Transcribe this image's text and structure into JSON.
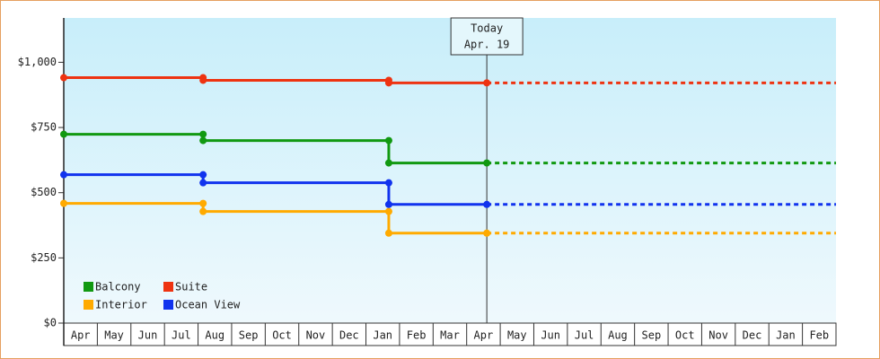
{
  "chart_data": {
    "type": "step-line",
    "xlim": [
      0,
      23
    ],
    "xticks": [
      {
        "value": 0.5,
        "label": "Apr"
      },
      {
        "value": 1.5,
        "label": "May"
      },
      {
        "value": 2.5,
        "label": "Jun"
      },
      {
        "value": 3.5,
        "label": "Jul"
      },
      {
        "value": 4.5,
        "label": "Aug"
      },
      {
        "value": 5.5,
        "label": "Sep"
      },
      {
        "value": 6.5,
        "label": "Oct"
      },
      {
        "value": 7.5,
        "label": "Nov"
      },
      {
        "value": 8.5,
        "label": "Dec"
      },
      {
        "value": 9.5,
        "label": "Jan"
      },
      {
        "value": 10.5,
        "label": "Feb"
      },
      {
        "value": 11.5,
        "label": "Mar"
      },
      {
        "value": 12.5,
        "label": "Apr"
      },
      {
        "value": 13.5,
        "label": "May"
      },
      {
        "value": 14.5,
        "label": "Jun"
      },
      {
        "value": 15.5,
        "label": "Jul"
      },
      {
        "value": 16.5,
        "label": "Aug"
      },
      {
        "value": 17.5,
        "label": "Sep"
      },
      {
        "value": 18.5,
        "label": "Oct"
      },
      {
        "value": 19.5,
        "label": "Nov"
      },
      {
        "value": 20.5,
        "label": "Dec"
      },
      {
        "value": 21.5,
        "label": "Jan"
      },
      {
        "value": 22.5,
        "label": "Feb"
      }
    ],
    "ylim": [
      0,
      1170
    ],
    "yticks": [
      {
        "value": 0,
        "label": "$0"
      },
      {
        "value": 250,
        "label": "$250"
      },
      {
        "value": 500,
        "label": "$500"
      },
      {
        "value": 750,
        "label": "$750"
      },
      {
        "value": 1000,
        "label": "$1,000"
      }
    ],
    "projection": true,
    "annotation": {
      "x": 12.6,
      "label": [
        "Today",
        "Apr. 19"
      ]
    },
    "series": [
      {
        "name": "Balcony",
        "color": "#119911",
        "x": [
          0,
          4.15,
          4.15,
          9.68,
          9.68,
          12.6
        ],
        "values": [
          724,
          724,
          700,
          700,
          614,
          614
        ]
      },
      {
        "name": "Suite",
        "color": "#ee3311",
        "x": [
          0,
          4.15,
          4.15,
          9.68,
          9.68,
          12.6
        ],
        "values": [
          941,
          941,
          931,
          931,
          921,
          921
        ]
      },
      {
        "name": "Interior",
        "color": "#ffaa00",
        "x": [
          0,
          4.15,
          4.15,
          9.68,
          9.68,
          12.6
        ],
        "values": [
          459,
          459,
          428,
          428,
          345,
          345
        ]
      },
      {
        "name": "Ocean View",
        "color": "#1133ee",
        "x": [
          0,
          4.15,
          4.15,
          9.68,
          9.68,
          12.6
        ],
        "values": [
          569,
          569,
          538,
          538,
          455,
          455
        ]
      }
    ]
  }
}
